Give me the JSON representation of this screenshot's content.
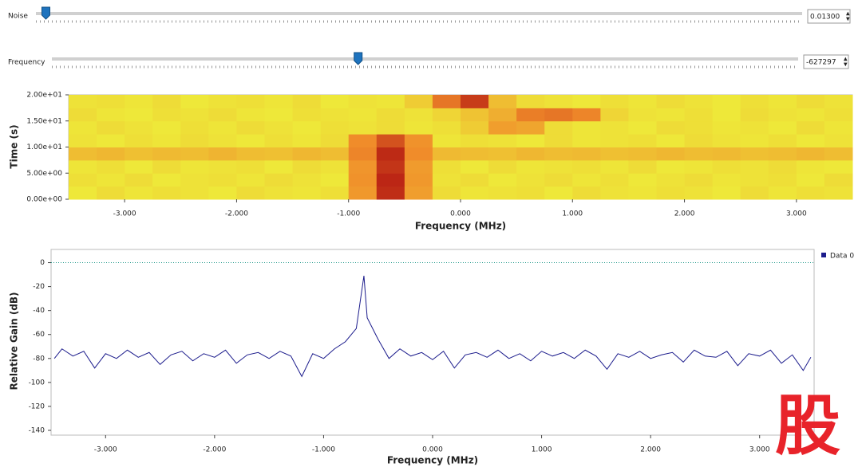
{
  "controls": [
    {
      "label": "Noise",
      "value": 0.013,
      "value_label": "0.01300",
      "range": [
        0,
        1
      ]
    },
    {
      "label": "Frequency",
      "value": -627297,
      "range": [
        -3500000,
        3500000
      ]
    }
  ],
  "watermark": "股",
  "chart_data": [
    {
      "type": "heatmap",
      "xlabel": "Frequency (MHz)",
      "ylabel": "Time (s)",
      "xlim": [
        -3.5,
        3.5
      ],
      "ylim": [
        0,
        20
      ],
      "xticks": [
        {
          "value": -3,
          "label": "-3.000"
        },
        {
          "value": -2,
          "label": "-2.000"
        },
        {
          "value": -1,
          "label": "-1.000"
        },
        {
          "value": 0,
          "label": "0.000"
        },
        {
          "value": 1,
          "label": "1.000"
        },
        {
          "value": 2,
          "label": "2.000"
        },
        {
          "value": 3,
          "label": "3.000"
        }
      ],
      "yticks": [
        {
          "value": 0,
          "label": "0.00e+00"
        },
        {
          "value": 5,
          "label": "5.00e+00"
        },
        {
          "value": 10,
          "label": "1.00e+01"
        },
        {
          "value": 15,
          "label": "1.50e+01"
        },
        {
          "value": 20,
          "label": "2.00e+01"
        }
      ],
      "colors": [
        "#55c45c",
        "#eef03a",
        "#f08a2a",
        "#b01010"
      ],
      "z": [
        [
          0.36,
          0.4,
          0.37,
          0.39,
          0.38,
          0.36,
          0.4,
          0.38,
          0.37,
          0.39,
          0.62,
          0.92,
          0.6,
          0.4,
          0.37,
          0.38,
          0.39,
          0.36,
          0.4,
          0.38,
          0.37,
          0.39,
          0.38,
          0.36,
          0.4,
          0.37,
          0.39,
          0.38
        ],
        [
          0.39,
          0.37,
          0.4,
          0.36,
          0.38,
          0.39,
          0.37,
          0.4,
          0.38,
          0.36,
          0.64,
          0.94,
          0.62,
          0.38,
          0.4,
          0.36,
          0.38,
          0.4,
          0.37,
          0.39,
          0.36,
          0.38,
          0.4,
          0.37,
          0.38,
          0.39,
          0.36,
          0.4
        ],
        [
          0.37,
          0.39,
          0.36,
          0.4,
          0.37,
          0.38,
          0.39,
          0.36,
          0.4,
          0.38,
          0.63,
          0.9,
          0.61,
          0.39,
          0.36,
          0.4,
          0.37,
          0.38,
          0.39,
          0.37,
          0.4,
          0.36,
          0.37,
          0.39,
          0.38,
          0.4,
          0.37,
          0.36
        ],
        [
          0.5,
          0.52,
          0.49,
          0.51,
          0.5,
          0.53,
          0.5,
          0.49,
          0.52,
          0.5,
          0.68,
          0.93,
          0.66,
          0.51,
          0.5,
          0.49,
          0.52,
          0.5,
          0.51,
          0.49,
          0.5,
          0.52,
          0.5,
          0.51,
          0.49,
          0.5,
          0.52,
          0.5
        ],
        [
          0.38,
          0.36,
          0.39,
          0.37,
          0.4,
          0.38,
          0.36,
          0.39,
          0.37,
          0.4,
          0.66,
          0.82,
          0.64,
          0.37,
          0.39,
          0.38,
          0.36,
          0.4,
          0.37,
          0.38,
          0.39,
          0.36,
          0.4,
          0.38,
          0.37,
          0.39,
          0.36,
          0.38
        ],
        [
          0.37,
          0.4,
          0.38,
          0.36,
          0.39,
          0.37,
          0.4,
          0.38,
          0.36,
          0.39,
          0.38,
          0.4,
          0.37,
          0.39,
          0.45,
          0.6,
          0.58,
          0.4,
          0.37,
          0.38,
          0.36,
          0.4,
          0.39,
          0.37,
          0.38,
          0.36,
          0.4,
          0.37
        ],
        [
          0.4,
          0.37,
          0.36,
          0.39,
          0.38,
          0.4,
          0.37,
          0.36,
          0.39,
          0.38,
          0.37,
          0.4,
          0.38,
          0.42,
          0.48,
          0.55,
          0.7,
          0.72,
          0.68,
          0.42,
          0.38,
          0.37,
          0.39,
          0.36,
          0.4,
          0.38,
          0.37,
          0.39
        ],
        [
          0.38,
          0.39,
          0.37,
          0.4,
          0.36,
          0.38,
          0.39,
          0.37,
          0.4,
          0.36,
          0.38,
          0.37,
          0.45,
          0.72,
          0.88,
          0.5,
          0.4,
          0.38,
          0.36,
          0.39,
          0.37,
          0.4,
          0.38,
          0.36,
          0.39,
          0.37,
          0.4,
          0.38
        ]
      ]
    },
    {
      "type": "line",
      "xlabel": "Frequency (MHz)",
      "ylabel": "Relative Gain (dB)",
      "xlim": [
        -3.5,
        3.5
      ],
      "ylim": [
        -144,
        11
      ],
      "xticks": [
        {
          "value": -3,
          "label": "-3.000"
        },
        {
          "value": -2,
          "label": "-2.000"
        },
        {
          "value": -1,
          "label": "-1.000"
        },
        {
          "value": 0,
          "label": "0.000"
        },
        {
          "value": 1,
          "label": "1.000"
        },
        {
          "value": 2,
          "label": "2.000"
        },
        {
          "value": 3,
          "label": "3.000"
        }
      ],
      "yticks": [
        0,
        -20,
        -40,
        -60,
        -80,
        -100,
        -120,
        -140
      ],
      "hline": 0,
      "hline_color": "#2a9d8f",
      "x": [
        -3.47,
        -3.4,
        -3.3,
        -3.2,
        -3.1,
        -3.0,
        -2.9,
        -2.8,
        -2.7,
        -2.6,
        -2.5,
        -2.4,
        -2.3,
        -2.2,
        -2.1,
        -2.0,
        -1.9,
        -1.8,
        -1.7,
        -1.6,
        -1.5,
        -1.4,
        -1.3,
        -1.2,
        -1.1,
        -1.0,
        -0.9,
        -0.8,
        -0.7,
        -0.63,
        -0.6,
        -0.5,
        -0.4,
        -0.3,
        -0.2,
        -0.1,
        0.0,
        0.1,
        0.2,
        0.3,
        0.4,
        0.5,
        0.6,
        0.7,
        0.8,
        0.9,
        1.0,
        1.1,
        1.2,
        1.3,
        1.4,
        1.5,
        1.6,
        1.7,
        1.8,
        1.9,
        2.0,
        2.1,
        2.2,
        2.3,
        2.4,
        2.5,
        2.6,
        2.7,
        2.8,
        2.9,
        3.0,
        3.1,
        3.2,
        3.3,
        3.4,
        3.47
      ],
      "series": [
        {
          "name": "Data 0",
          "color": "#1c1c8c",
          "values": [
            -80,
            -72,
            -78,
            -74,
            -88,
            -76,
            -80,
            -73,
            -79,
            -75,
            -85,
            -77,
            -74,
            -82,
            -76,
            -79,
            -73,
            -84,
            -77,
            -75,
            -80,
            -74,
            -78,
            -95,
            -76,
            -80,
            -72,
            -66,
            -55,
            -11,
            -46,
            -64,
            -80,
            -72,
            -78,
            -75,
            -81,
            -74,
            -88,
            -77,
            -75,
            -79,
            -73,
            -80,
            -76,
            -82,
            -74,
            -78,
            -75,
            -80,
            -73,
            -78,
            -89,
            -76,
            -79,
            -74,
            -80,
            -77,
            -75,
            -83,
            -73,
            -78,
            -79,
            -74,
            -86,
            -76,
            -78,
            -73,
            -84,
            -77,
            -90,
            -79
          ]
        }
      ]
    }
  ]
}
